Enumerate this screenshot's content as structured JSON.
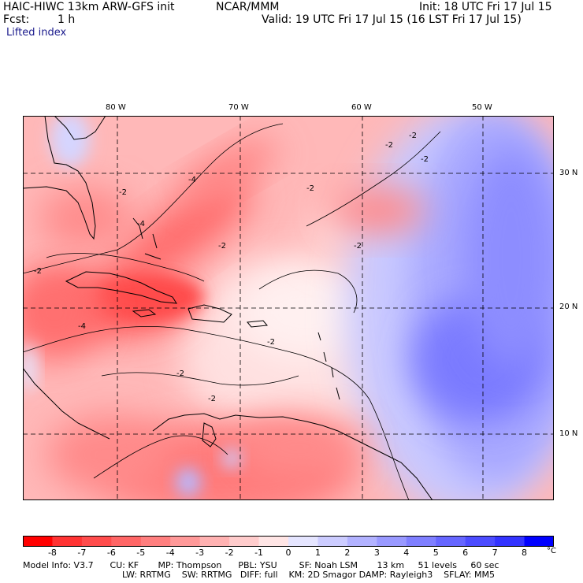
{
  "header": {
    "model_title": "HAIC-HIWC 13km ARW-GFS init",
    "org": "NCAR/MMM",
    "init": "Init: 18 UTC Fri 17 Jul 15",
    "fcst_label": "Fcst:",
    "fcst_value": "1 h",
    "valid": "Valid: 19 UTC Fri 17 Jul 15 (16 LST Fri 17 Jul 15)",
    "field": "Lifted index"
  },
  "map": {
    "lon_labels": [
      "80 W",
      "70 W",
      "60 W",
      "50 W"
    ],
    "lat_labels": [
      "30 N",
      "20 N",
      "10 N"
    ],
    "contour_labels": [
      "-2",
      "-4"
    ]
  },
  "colorbar": {
    "ticks": [
      "-8",
      "-7",
      "-6",
      "-5",
      "-4",
      "-3",
      "-2",
      "-1",
      "0",
      "1",
      "2",
      "3",
      "4",
      "5",
      "6",
      "7",
      "8"
    ],
    "unit": "°C",
    "colors": [
      "#ff0000",
      "#ff3333",
      "#ff4c4c",
      "#ff6666",
      "#ff7f7f",
      "#ff9999",
      "#ffb2b2",
      "#ffcccc",
      "#ffe5e5",
      "#e5e5ff",
      "#ccccff",
      "#b2b2ff",
      "#9999ff",
      "#7f7fff",
      "#6666ff",
      "#4c4cff",
      "#3333ff",
      "#0000ff"
    ]
  },
  "model_info": {
    "line1": "Model Info: V3.7      CU: KF       MP: Thompson      PBL: YSU        SF: Noah LSM       13 km     51 levels     60 sec",
    "line2": "LW: RRTMG    SW: RRTMG   DIFF: full    KM: 2D Smagor DAMP: Rayleigh3    SFLAY: MM5"
  }
}
